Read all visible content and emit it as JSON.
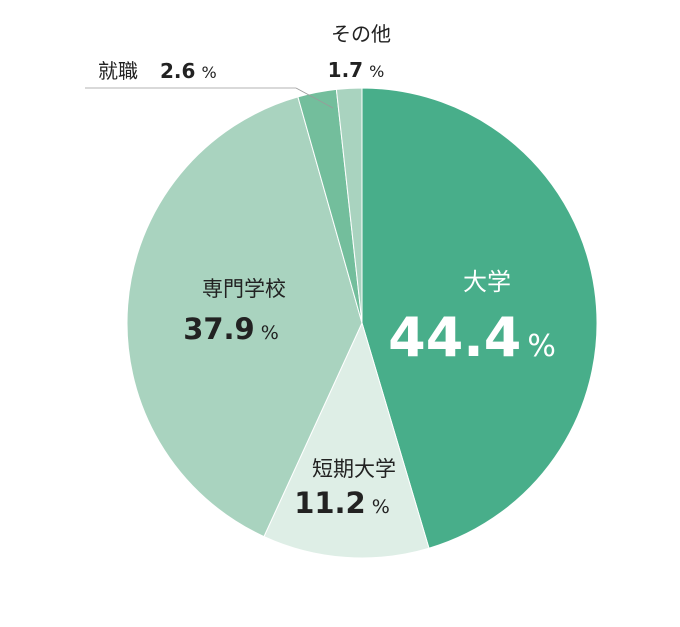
{
  "chart_data": {
    "type": "pie",
    "slices": [
      {
        "label": "大学",
        "value": 44.4,
        "value_text": "44.4",
        "unit": "%",
        "color": "#48ae8a",
        "label_color": "#ffffff"
      },
      {
        "label": "短期大学",
        "value": 11.2,
        "value_text": "11.2",
        "unit": "%",
        "color": "#deeee6",
        "label_color": "#222222"
      },
      {
        "label": "専門学校",
        "value": 37.9,
        "value_text": "37.9",
        "unit": "%",
        "color": "#a9d3bf",
        "label_color": "#222222"
      },
      {
        "label": "就職",
        "value": 2.6,
        "value_text": "2.6",
        "unit": "%",
        "color": "#73be9c",
        "label_color": "#222222"
      },
      {
        "label": "その他",
        "value": 1.7,
        "value_text": "1.7",
        "unit": "%",
        "color": "#a9d3bf",
        "label_color": "#222222"
      }
    ],
    "start": "12 o'clock",
    "direction": "clockwise",
    "legend": "none"
  }
}
